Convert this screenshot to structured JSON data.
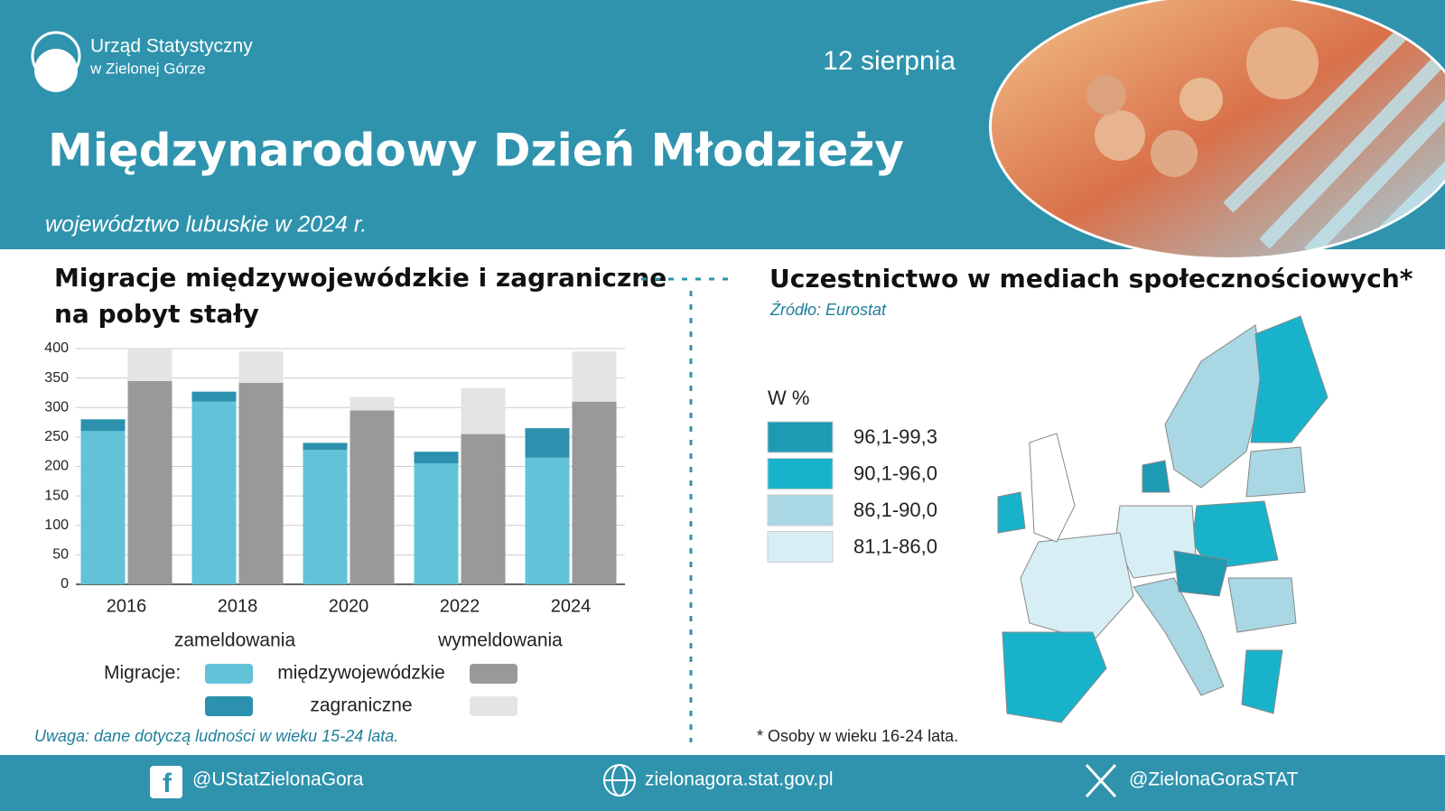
{
  "header": {
    "org_line1": "Urząd Statystyczny",
    "org_line2": "w Zielonej Górze",
    "date": "12 sierpnia",
    "title": "Międzynarodowy Dzień Młodzieży",
    "subtitle": "województwo lubuskie w 2024 r."
  },
  "chart_data": {
    "type": "bar",
    "stacked": true,
    "title_line1": "Migracje międzywojewódzkie i zagraniczne",
    "title_line2": "na pobyt stały",
    "categories": [
      "2016",
      "2018",
      "2020",
      "2022",
      "2024"
    ],
    "groups": [
      {
        "name": "zameldowania",
        "series": [
          {
            "color": "#62c3d8",
            "values": [
              260,
              310,
              228,
              205,
              215
            ]
          },
          {
            "color": "#2b91ae",
            "values": [
              20,
              17,
              12,
              20,
              50
            ]
          }
        ]
      },
      {
        "name": "wymeldowania",
        "series": [
          {
            "color": "#999999",
            "values": [
              345,
              342,
              295,
              255,
              310
            ]
          },
          {
            "color": "#e4e4e4",
            "values": [
              55,
              53,
              23,
              78,
              85
            ]
          }
        ]
      }
    ],
    "legend": {
      "title": "Migracje:",
      "names": [
        "międzywojewódzkie",
        "zagraniczne"
      ]
    },
    "ylim": [
      0,
      400
    ],
    "yticks": [
      0,
      50,
      100,
      150,
      200,
      250,
      300,
      350,
      400
    ],
    "grid": true,
    "note": "Uwaga: dane dotyczą ludności w wieku 15-24 lata."
  },
  "map": {
    "title": "Uczestnictwo w mediach społecznościowych*",
    "source": "Źródło: Eurostat",
    "legend_title": "W %",
    "classes": [
      {
        "label": "96,1-99,3",
        "color": "#1e9ab3"
      },
      {
        "label": "90,1-96,0",
        "color": "#18b3cb"
      },
      {
        "label": "86,1-90,0",
        "color": "#a9d7e4"
      },
      {
        "label": "81,1-86,0",
        "color": "#d7eef4"
      }
    ],
    "footnote": "* Osoby w wieku 16-24 lata."
  },
  "footer": {
    "facebook": "@UStatZielonaGora",
    "website": "zielonagora.stat.gov.pl",
    "x": "@ZielonaGoraSTAT"
  }
}
